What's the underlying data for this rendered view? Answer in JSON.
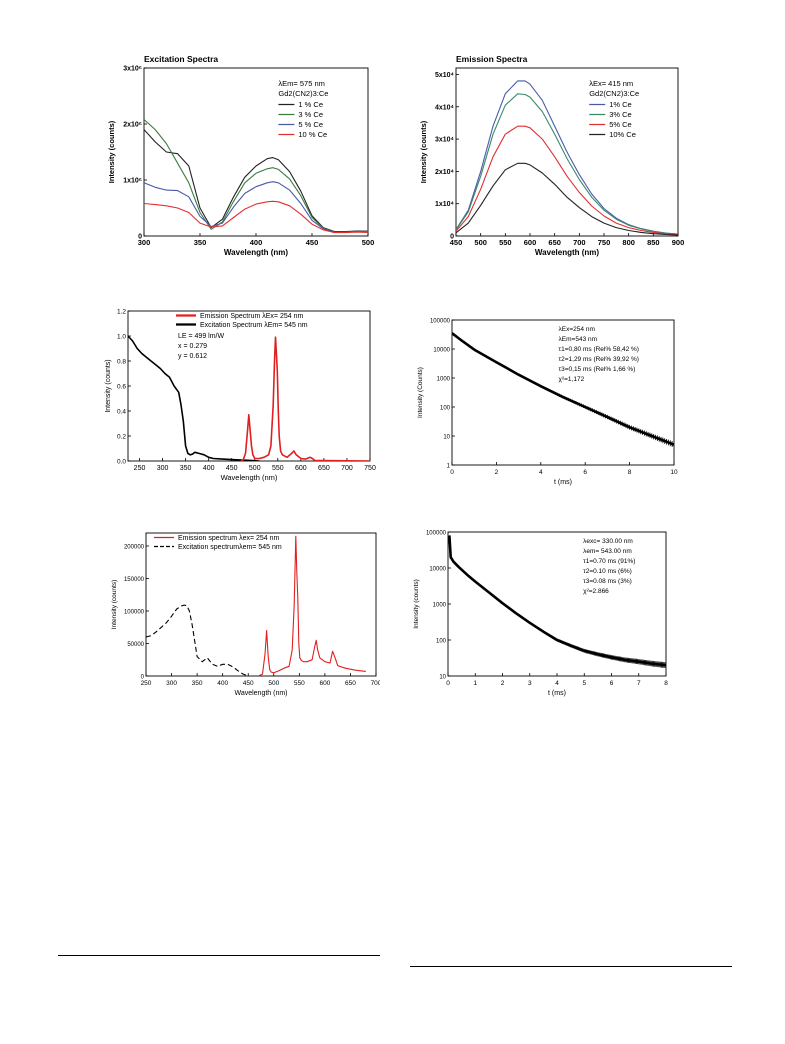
{
  "chart_data": [
    {
      "id": "excitation",
      "type": "line",
      "title": "Excitation Spectra",
      "xlabel": "Wavelength (nm)",
      "ylabel": "Intensity (counts)",
      "xlim": [
        300,
        500
      ],
      "ylim": [
        0,
        3000000
      ],
      "xticks": [
        300,
        350,
        400,
        450,
        500
      ],
      "yticks": [
        {
          "v": 0,
          "l": "0"
        },
        {
          "v": 1000000,
          "l": "1x10⁶"
        },
        {
          "v": 2000000,
          "l": "2x10⁶"
        },
        {
          "v": 3000000,
          "l": "3x10⁶"
        }
      ],
      "annotations": [
        "λEm= 575 nm",
        "Gd2(CN2)3:Ce"
      ],
      "legend": "top-right",
      "series": [
        {
          "name": "1 % Ce",
          "color": "#222222",
          "x": [
            300,
            310,
            320,
            330,
            340,
            350,
            360,
            370,
            380,
            390,
            400,
            410,
            415,
            420,
            430,
            440,
            450,
            460,
            470,
            480,
            490,
            500
          ],
          "y": [
            1900000,
            1680000,
            1500000,
            1470000,
            1250000,
            500000,
            150000,
            300000,
            700000,
            1050000,
            1250000,
            1380000,
            1400000,
            1360000,
            1150000,
            800000,
            360000,
            150000,
            80000,
            80000,
            90000,
            85000
          ]
        },
        {
          "name": "3 % Ce",
          "color": "#3a7d44",
          "x": [
            300,
            310,
            320,
            330,
            340,
            350,
            360,
            370,
            380,
            390,
            400,
            410,
            415,
            420,
            430,
            440,
            450,
            460,
            470,
            480,
            490,
            500
          ],
          "y": [
            2080000,
            1900000,
            1650000,
            1300000,
            950000,
            420000,
            120000,
            250000,
            620000,
            950000,
            1120000,
            1200000,
            1220000,
            1190000,
            1020000,
            720000,
            330000,
            140000,
            70000,
            70000,
            80000,
            80000
          ]
        },
        {
          "name": "5 % Ce",
          "color": "#4a5aa8",
          "x": [
            300,
            310,
            320,
            330,
            340,
            350,
            360,
            370,
            380,
            390,
            400,
            410,
            415,
            420,
            430,
            440,
            450,
            460,
            470,
            480,
            490,
            500
          ],
          "y": [
            950000,
            870000,
            820000,
            810000,
            700000,
            350000,
            170000,
            230000,
            520000,
            760000,
            880000,
            950000,
            970000,
            950000,
            820000,
            580000,
            280000,
            130000,
            70000,
            70000,
            80000,
            75000
          ]
        },
        {
          "name": "10 % Ce",
          "color": "#e03030",
          "x": [
            300,
            310,
            320,
            330,
            340,
            350,
            360,
            370,
            380,
            390,
            400,
            410,
            415,
            420,
            430,
            440,
            450,
            460,
            470,
            480,
            490,
            500
          ],
          "y": [
            580000,
            560000,
            540000,
            500000,
            420000,
            230000,
            160000,
            180000,
            330000,
            480000,
            570000,
            610000,
            620000,
            610000,
            540000,
            390000,
            210000,
            110000,
            60000,
            60000,
            70000,
            65000
          ]
        }
      ]
    },
    {
      "id": "emission",
      "type": "line",
      "title": "Emission Spectra",
      "xlabel": "Wavelength (nm)",
      "ylabel": "Intensity (counts)",
      "xlim": [
        450,
        900
      ],
      "ylim": [
        0,
        52000
      ],
      "xticks": [
        450,
        500,
        550,
        600,
        650,
        700,
        750,
        800,
        850,
        900
      ],
      "yticks": [
        {
          "v": 0,
          "l": "0"
        },
        {
          "v": 10000,
          "l": "1x10⁴"
        },
        {
          "v": 20000,
          "l": "2x10⁴"
        },
        {
          "v": 30000,
          "l": "3x10⁴"
        },
        {
          "v": 40000,
          "l": "4x10⁴"
        },
        {
          "v": 50000,
          "l": "5x10⁴"
        }
      ],
      "annotations": [
        "λEx= 415 nm",
        "Gd2(CN2)3:Ce"
      ],
      "legend": "top-right",
      "series": [
        {
          "name": "1% Ce",
          "color": "#4a5aa8",
          "x": [
            450,
            475,
            500,
            525,
            550,
            575,
            590,
            600,
            625,
            650,
            675,
            700,
            725,
            750,
            775,
            800,
            825,
            850,
            875,
            900
          ],
          "y": [
            2000,
            8000,
            20000,
            34000,
            44000,
            48000,
            48000,
            47000,
            42000,
            34000,
            26000,
            19000,
            13000,
            8500,
            5500,
            3500,
            2300,
            1500,
            900,
            600
          ]
        },
        {
          "name": "3% Ce",
          "color": "#3a8a6a",
          "x": [
            450,
            475,
            500,
            525,
            550,
            575,
            590,
            600,
            625,
            650,
            675,
            700,
            725,
            750,
            775,
            800,
            825,
            850,
            875,
            900
          ],
          "y": [
            1900,
            7500,
            18500,
            31500,
            40500,
            44000,
            43800,
            43000,
            38500,
            31500,
            24000,
            17500,
            12000,
            8000,
            5200,
            3300,
            2200,
            1400,
            850,
            550
          ]
        },
        {
          "name": "5% Ce",
          "color": "#e03030",
          "x": [
            450,
            475,
            500,
            525,
            550,
            575,
            590,
            600,
            625,
            650,
            675,
            700,
            725,
            750,
            775,
            800,
            825,
            850,
            875,
            900
          ],
          "y": [
            1500,
            6000,
            14500,
            24500,
            31500,
            34000,
            34000,
            33500,
            30000,
            24500,
            18500,
            13500,
            9300,
            6200,
            4000,
            2600,
            1700,
            1100,
            700,
            450
          ]
        },
        {
          "name": "10% Ce",
          "color": "#222222",
          "x": [
            450,
            475,
            500,
            525,
            550,
            575,
            590,
            600,
            625,
            650,
            675,
            700,
            725,
            750,
            775,
            800,
            825,
            850,
            875,
            900
          ],
          "y": [
            1000,
            4000,
            9500,
            15500,
            20500,
            22500,
            22500,
            22000,
            19500,
            16000,
            12000,
            8800,
            6000,
            4000,
            2600,
            1700,
            1100,
            700,
            450,
            300
          ]
        }
      ]
    },
    {
      "id": "spectrum254",
      "type": "line",
      "title": "",
      "xlabel": "Wavelength (nm)",
      "ylabel": "Intensity (counts)",
      "xlim": [
        225,
        750
      ],
      "ylim": [
        0,
        1.2
      ],
      "xticks": [
        250,
        300,
        350,
        400,
        450,
        500,
        550,
        600,
        650,
        700,
        750
      ],
      "yticks": [
        {
          "v": 0,
          "l": "0.0"
        },
        {
          "v": 0.2,
          "l": "0.2"
        },
        {
          "v": 0.4,
          "l": "0.4"
        },
        {
          "v": 0.6,
          "l": "0.6"
        },
        {
          "v": 0.8,
          "l": "0.8"
        },
        {
          "v": 1.0,
          "l": "1.0"
        },
        {
          "v": 1.2,
          "l": "1.2"
        }
      ],
      "legend": "top-left",
      "legend_entries": [
        {
          "text": "Emission Spectrum λEx= 254 nm",
          "color": "#e02020"
        },
        {
          "text": "Excitation Spectrum λEm= 545 nm",
          "color": "#000000"
        }
      ],
      "annotations": [
        "LE = 499 lm/W",
        "x = 0.279",
        "y = 0.612"
      ],
      "series": [
        {
          "name": "Excitation Spectrum",
          "color": "#000000",
          "x": [
            225,
            235,
            245,
            255,
            265,
            275,
            285,
            295,
            305,
            315,
            325,
            335,
            340,
            345,
            350,
            355,
            360,
            365,
            370,
            380,
            390,
            400,
            410,
            430,
            460,
            490,
            510
          ],
          "y": [
            1.0,
            0.96,
            0.9,
            0.86,
            0.83,
            0.8,
            0.77,
            0.74,
            0.7,
            0.67,
            0.6,
            0.55,
            0.45,
            0.32,
            0.12,
            0.06,
            0.05,
            0.055,
            0.07,
            0.06,
            0.05,
            0.03,
            0.02,
            0.015,
            0.01,
            0.005,
            0.0
          ]
        },
        {
          "name": "Emission Spectrum",
          "color": "#e02020",
          "x": [
            470,
            475,
            480,
            484,
            487,
            490,
            493,
            496,
            500,
            510,
            520,
            530,
            535,
            540,
            543,
            545,
            547,
            549,
            551,
            553,
            556,
            560,
            570,
            580,
            585,
            590,
            600,
            610,
            620,
            625,
            630,
            650,
            700,
            750
          ],
          "y": [
            0.0,
            0.01,
            0.06,
            0.23,
            0.37,
            0.24,
            0.12,
            0.05,
            0.02,
            0.02,
            0.03,
            0.05,
            0.12,
            0.45,
            0.82,
            0.99,
            0.86,
            0.72,
            0.4,
            0.2,
            0.08,
            0.05,
            0.03,
            0.06,
            0.08,
            0.05,
            0.02,
            0.015,
            0.03,
            0.02,
            0.005,
            0.003,
            0.002,
            0.0
          ]
        }
      ]
    },
    {
      "id": "decay1",
      "type": "line",
      "title": "",
      "xlabel": "t (ms)",
      "ylabel": "Intensity (Counts)",
      "xlim": [
        0,
        10
      ],
      "ylim": [
        1,
        100000
      ],
      "log_y": true,
      "xticks": [
        0,
        2,
        4,
        6,
        8,
        10
      ],
      "yticks": [
        {
          "v": 1,
          "l": "1"
        },
        {
          "v": 10,
          "l": "10"
        },
        {
          "v": 100,
          "l": "100"
        },
        {
          "v": 1000,
          "l": "1000"
        },
        {
          "v": 10000,
          "l": "10000"
        },
        {
          "v": 100000,
          "l": "100000"
        }
      ],
      "annotations": [
        "λEx=254 nm",
        "λEm=543 nm",
        "τ1=0,80 ms (Rel% 58,42 %)",
        "τ2=1,29 ms (Rel% 39,92 %)",
        "τ3=0,15 ms (Rel% 1,66 %)",
        "χ²=1,172"
      ],
      "series": [
        {
          "name": "",
          "color": "#000000",
          "x": [
            0,
            0.5,
            1,
            2,
            3,
            4,
            5,
            6,
            7,
            8,
            9,
            10
          ],
          "y": [
            35000,
            18000,
            9500,
            3500,
            1300,
            520,
            220,
            100,
            45,
            20,
            10,
            5
          ]
        }
      ]
    },
    {
      "id": "spectrum254b",
      "type": "line",
      "title": "",
      "xlabel": "Wavelength (nm)",
      "ylabel": "Intensity (counts)",
      "xlim": [
        250,
        700
      ],
      "ylim": [
        0,
        220000
      ],
      "xticks": [
        250,
        300,
        350,
        400,
        450,
        500,
        550,
        600,
        650,
        700
      ],
      "yticks": [
        {
          "v": 0,
          "l": "0"
        },
        {
          "v": 50000,
          "l": "50000"
        },
        {
          "v": 100000,
          "l": "100000"
        },
        {
          "v": 150000,
          "l": "150000"
        },
        {
          "v": 200000,
          "l": "200000"
        }
      ],
      "legend": "top-left",
      "legend_entries": [
        {
          "text": "Emission spectrum λex= 254 nm",
          "color": "#e02020",
          "dash": false
        },
        {
          "text": "Excitation spectrumλem= 545 nm",
          "color": "#000000",
          "dash": true
        }
      ],
      "series": [
        {
          "name": "Excitation spectrum",
          "color": "#000000",
          "dash": true,
          "x": [
            250,
            260,
            270,
            280,
            290,
            300,
            310,
            320,
            325,
            330,
            335,
            340,
            345,
            350,
            360,
            370,
            380,
            390,
            400,
            410,
            420,
            430,
            440,
            450
          ],
          "y": [
            60000,
            62000,
            68000,
            75000,
            82000,
            92000,
            103000,
            108000,
            109000,
            108000,
            100000,
            80000,
            55000,
            30000,
            22000,
            28000,
            18000,
            15000,
            18000,
            18000,
            14000,
            8000,
            3000,
            0
          ]
        },
        {
          "name": "Emission spectrum",
          "color": "#e02020",
          "dash": false,
          "x": [
            470,
            478,
            483,
            486,
            489,
            492,
            495,
            500,
            510,
            520,
            530,
            536,
            540,
            543,
            545,
            547,
            549,
            551,
            554,
            558,
            565,
            575,
            580,
            583,
            586,
            590,
            600,
            610,
            615,
            620,
            625,
            640,
            660,
            680
          ],
          "y": [
            0,
            3000,
            35000,
            70000,
            30000,
            10000,
            6000,
            5000,
            8000,
            12000,
            15000,
            40000,
            110000,
            215000,
            160000,
            120000,
            50000,
            28000,
            24000,
            22000,
            22000,
            25000,
            45000,
            55000,
            40000,
            28000,
            22000,
            20000,
            38000,
            28000,
            16000,
            12000,
            9000,
            7000
          ]
        }
      ]
    },
    {
      "id": "decay2",
      "type": "line",
      "title": "",
      "xlabel": "t (ms)",
      "ylabel": "Intensity (counts)",
      "xlim": [
        0,
        8
      ],
      "ylim": [
        10,
        100000
      ],
      "log_y": true,
      "xticks": [
        0,
        1,
        2,
        3,
        4,
        5,
        6,
        7,
        8
      ],
      "yticks": [
        {
          "v": 10,
          "l": "10"
        },
        {
          "v": 100,
          "l": "100"
        },
        {
          "v": 1000,
          "l": "1000"
        },
        {
          "v": 10000,
          "l": "10000"
        },
        {
          "v": 100000,
          "l": "100000"
        }
      ],
      "annotations": [
        "λexc= 330.00 nm",
        "λem= 543.00 nm",
        "τ1=0.70 ms (91%)",
        "τ2=0.10 ms (6%)",
        "τ3=0.08 ms (3%)",
        "χ²=2.866"
      ],
      "series": [
        {
          "name": "",
          "color": "#000000",
          "x": [
            0.05,
            0.1,
            0.2,
            0.4,
            0.7,
            1,
            1.5,
            2,
            2.5,
            3,
            3.5,
            4,
            4.5,
            5,
            5.5,
            6,
            6.5,
            7,
            7.5,
            8
          ],
          "y": [
            80000,
            20000,
            15000,
            10500,
            6500,
            4200,
            2100,
            1050,
            550,
            300,
            170,
            100,
            70,
            50,
            40,
            33,
            28,
            25,
            22,
            20
          ]
        }
      ]
    }
  ]
}
